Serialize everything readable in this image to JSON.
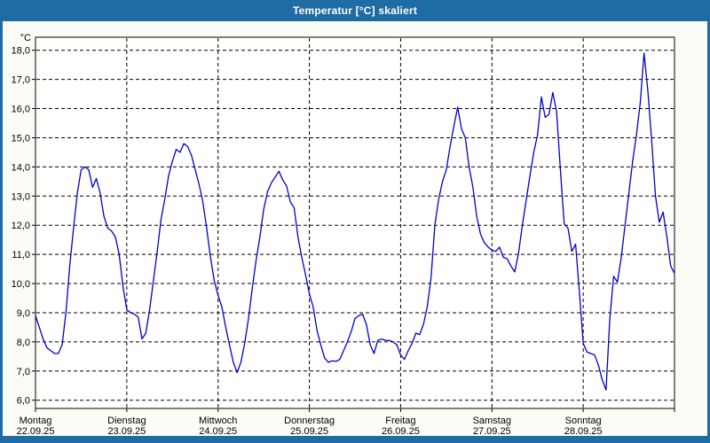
{
  "window": {
    "title": "Temperatur [°C] skaliert"
  },
  "colors": {
    "titlebar": "#1f6ba3",
    "window_border": "#1f6ba3",
    "background": "#fcfcf6",
    "plot_background": "#ffffff",
    "line": "#0000cd",
    "grid": "#000000",
    "text": "#000000"
  },
  "chart_data": {
    "type": "line",
    "title": "Temperatur [°C] skaliert",
    "unit_label": "°C",
    "ylim": [
      6.0,
      18.0
    ],
    "y_tick_step": 1.0,
    "y_tick_labels": [
      "18,0",
      "17,0",
      "16,0",
      "15,0",
      "14,0",
      "13,0",
      "12,0",
      "11,0",
      "10,0",
      "9,0",
      "8,0",
      "7,0",
      "6,0"
    ],
    "grid": true,
    "legend": "none",
    "x_axis": {
      "unit": "hours",
      "range_hours": [
        0,
        168
      ],
      "day_ticks": [
        {
          "name": "Montag",
          "date": "22.09.25"
        },
        {
          "name": "Dienstag",
          "date": "23.09.25"
        },
        {
          "name": "Mittwoch",
          "date": "24.09.25"
        },
        {
          "name": "Donnerstag",
          "date": "25.09.25"
        },
        {
          "name": "Freitag",
          "date": "26.09.25"
        },
        {
          "name": "Samstag",
          "date": "27.09.25"
        },
        {
          "name": "Sonntag",
          "date": "28.09.25"
        }
      ]
    },
    "series": [
      {
        "name": "Temperatur",
        "color": "#0000cd",
        "x_start_hour": 0,
        "x_step_hours": 1,
        "values": [
          8.9,
          8.5,
          8.1,
          7.8,
          7.7,
          7.6,
          7.6,
          7.9,
          9.0,
          10.6,
          11.9,
          13.1,
          13.9,
          14.0,
          13.9,
          13.3,
          13.6,
          13.1,
          12.3,
          11.9,
          11.8,
          11.6,
          11.0,
          9.9,
          9.1,
          9.0,
          8.95,
          8.85,
          8.1,
          8.3,
          9.1,
          10.1,
          11.1,
          12.2,
          12.9,
          13.7,
          14.2,
          14.6,
          14.5,
          14.8,
          14.7,
          14.4,
          13.9,
          13.4,
          12.8,
          11.9,
          10.9,
          10.1,
          9.6,
          9.2,
          8.5,
          7.9,
          7.3,
          6.95,
          7.3,
          7.95,
          8.8,
          9.85,
          10.8,
          11.6,
          12.55,
          13.15,
          13.45,
          13.65,
          13.85,
          13.55,
          13.35,
          12.8,
          12.6,
          11.6,
          10.9,
          10.3,
          9.65,
          9.2,
          8.4,
          7.9,
          7.45,
          7.3,
          7.35,
          7.33,
          7.4,
          7.7,
          8.0,
          8.35,
          8.8,
          8.9,
          8.95,
          8.6,
          7.9,
          7.6,
          8.05,
          8.1,
          8.05,
          8.05,
          8.0,
          7.9,
          7.55,
          7.4,
          7.7,
          7.95,
          8.3,
          8.25,
          8.6,
          9.2,
          10.2,
          12.0,
          12.9,
          13.5,
          13.9,
          14.7,
          15.4,
          16.05,
          15.3,
          15.0,
          14.0,
          13.3,
          12.3,
          11.7,
          11.4,
          11.25,
          11.15,
          11.1,
          11.25,
          10.9,
          10.85,
          10.6,
          10.4,
          11.05,
          12.0,
          12.85,
          13.7,
          14.5,
          15.1,
          16.4,
          15.7,
          15.8,
          16.55,
          15.9,
          13.9,
          12.05,
          11.9,
          11.1,
          11.35,
          9.7,
          7.95,
          7.65,
          7.6,
          7.55,
          7.2,
          6.7,
          6.35,
          8.8,
          10.25,
          10.05,
          10.9,
          12.0,
          13.1,
          14.2,
          15.1,
          16.2,
          17.9,
          16.6,
          14.9,
          13.0,
          12.1,
          12.45,
          11.6,
          10.6,
          10.35
        ]
      }
    ]
  }
}
